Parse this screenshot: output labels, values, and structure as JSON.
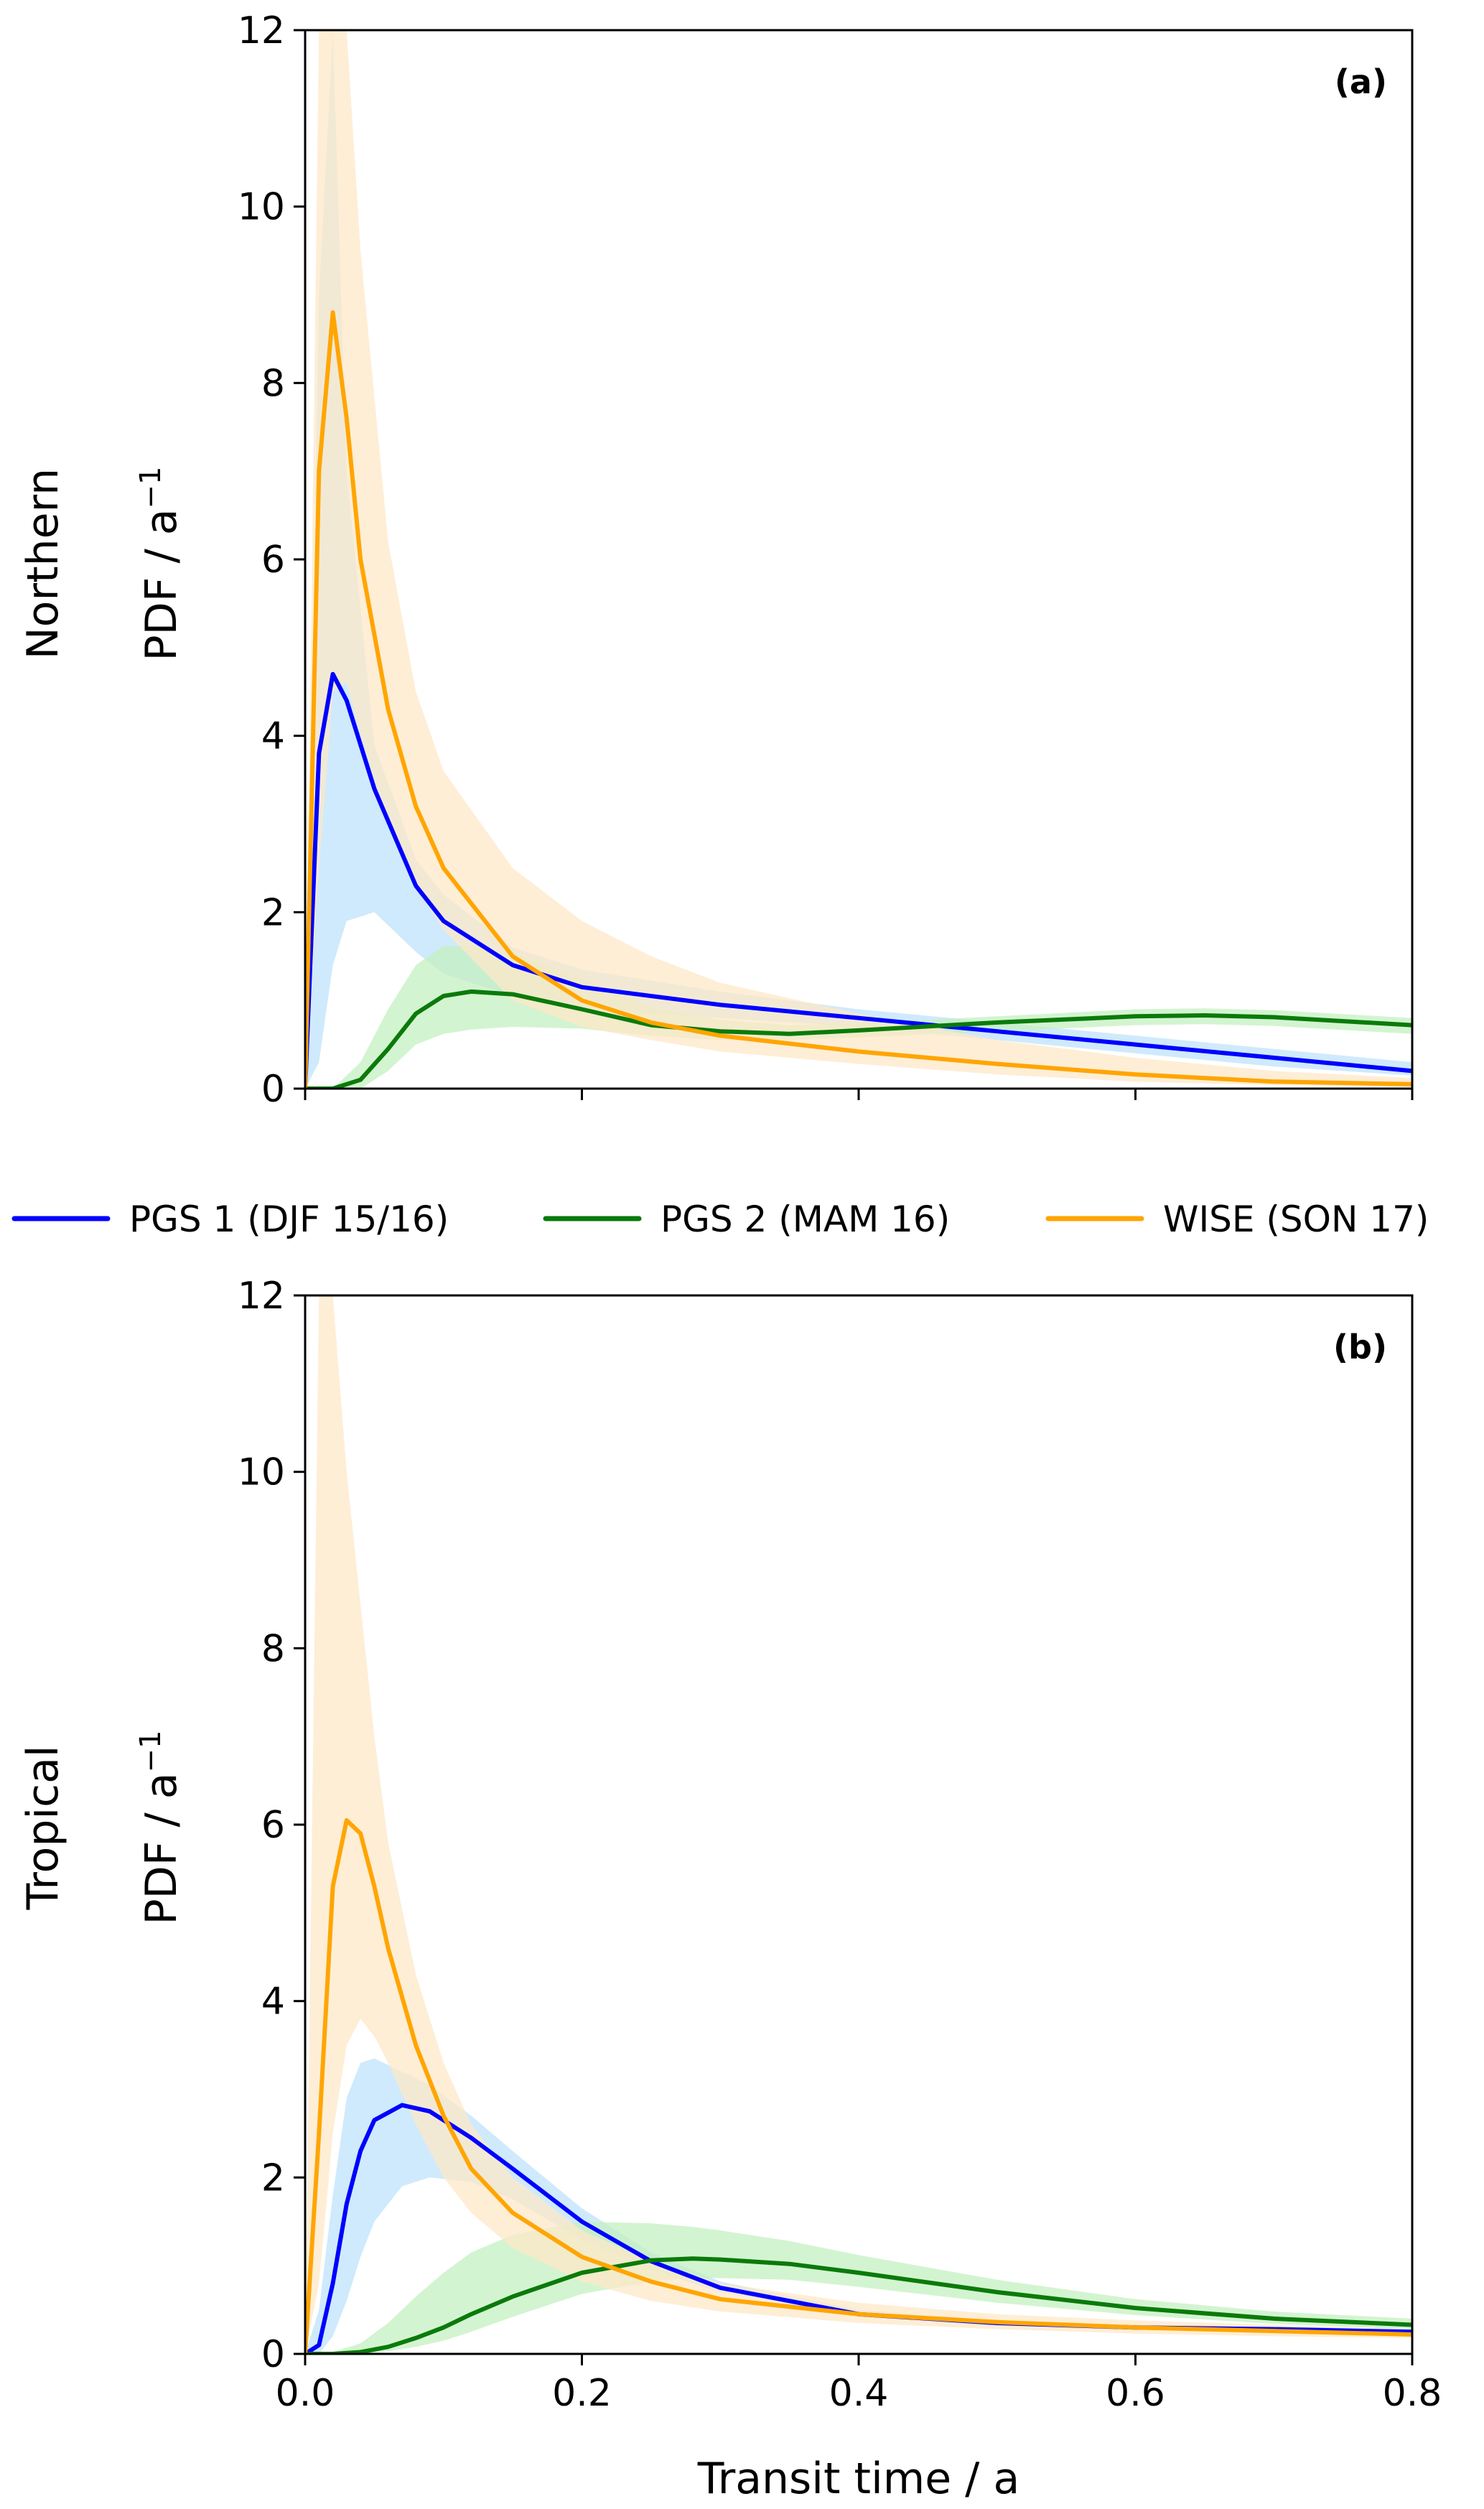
{
  "chart_data": [
    {
      "type": "line",
      "panel_label": "(a)",
      "row_label": "Northern",
      "ylabel": "PDF / a",
      "ylabel_exponent": "−1",
      "xlabel": "",
      "xlim": [
        0,
        0.8
      ],
      "ylim": [
        0,
        12
      ],
      "yticks": [
        "0",
        "2",
        "4",
        "6",
        "8",
        "10",
        "12"
      ],
      "xticks": [
        "",
        "",
        "",
        "",
        ""
      ],
      "series": [
        {
          "name": "PGS 1 (DJF 15/16)",
          "color": "#0000ff",
          "band_color": "#bfe3fb",
          "x": [
            0,
            0.01,
            0.02,
            0.03,
            0.05,
            0.08,
            0.1,
            0.15,
            0.2,
            0.3,
            0.4,
            0.5,
            0.6,
            0.7,
            0.8
          ],
          "y": [
            0,
            3.8,
            4.7,
            4.4,
            3.4,
            2.3,
            1.9,
            1.4,
            1.15,
            0.95,
            0.8,
            0.65,
            0.5,
            0.35,
            0.2
          ],
          "band_lower": [
            0,
            0.3,
            1.4,
            1.9,
            2.0,
            1.55,
            1.3,
            1.05,
            0.9,
            0.8,
            0.7,
            0.55,
            0.4,
            0.25,
            0.15
          ],
          "band_upper": [
            0,
            9,
            12,
            7,
            3.9,
            2.6,
            2.2,
            1.6,
            1.35,
            1.1,
            0.9,
            0.75,
            0.6,
            0.45,
            0.3
          ]
        },
        {
          "name": "PGS 2 (MAM 16)",
          "color": "#0a7a0a",
          "band_color": "#c4f0c0",
          "x": [
            0,
            0.02,
            0.04,
            0.06,
            0.08,
            0.1,
            0.12,
            0.15,
            0.2,
            0.25,
            0.3,
            0.35,
            0.4,
            0.5,
            0.6,
            0.65,
            0.7,
            0.8
          ],
          "y": [
            0,
            0,
            0.1,
            0.45,
            0.85,
            1.05,
            1.1,
            1.07,
            0.9,
            0.72,
            0.65,
            0.62,
            0.66,
            0.75,
            0.82,
            0.83,
            0.81,
            0.72
          ],
          "band_lower": [
            0,
            0,
            0,
            0.2,
            0.5,
            0.62,
            0.67,
            0.7,
            0.68,
            0.6,
            0.55,
            0.55,
            0.58,
            0.65,
            0.72,
            0.73,
            0.71,
            0.62
          ],
          "band_upper": [
            0,
            0,
            0.3,
            0.9,
            1.4,
            1.62,
            1.62,
            1.55,
            1.25,
            0.92,
            0.78,
            0.72,
            0.74,
            0.82,
            0.9,
            0.91,
            0.89,
            0.8
          ]
        },
        {
          "name": "WISE (SON 17)",
          "color": "#ffa500",
          "band_color": "#fde8c8",
          "x": [
            0,
            0.01,
            0.02,
            0.03,
            0.04,
            0.06,
            0.08,
            0.1,
            0.15,
            0.2,
            0.25,
            0.3,
            0.4,
            0.5,
            0.6,
            0.7,
            0.8
          ],
          "y": [
            0,
            7.0,
            8.8,
            7.6,
            6.0,
            4.3,
            3.2,
            2.5,
            1.5,
            1.0,
            0.75,
            0.6,
            0.42,
            0.28,
            0.16,
            0.08,
            0.05
          ],
          "band_lower": [
            0,
            2.5,
            4.5,
            4.6,
            4.0,
            3.0,
            2.3,
            1.8,
            1.0,
            0.7,
            0.55,
            0.42,
            0.28,
            0.16,
            0.08,
            0.04,
            0.02
          ],
          "band_upper": [
            0,
            12,
            12,
            12,
            9.5,
            6.2,
            4.5,
            3.6,
            2.5,
            1.9,
            1.5,
            1.2,
            0.85,
            0.55,
            0.35,
            0.2,
            0.12
          ]
        }
      ]
    },
    {
      "type": "line",
      "panel_label": "(b)",
      "row_label": "Tropical",
      "ylabel": "PDF / a",
      "ylabel_exponent": "−1",
      "xlabel": "Transit time / a",
      "xlim": [
        0,
        0.8
      ],
      "ylim": [
        0,
        12
      ],
      "yticks": [
        "0",
        "2",
        "4",
        "6",
        "8",
        "10",
        "12"
      ],
      "xticks": [
        "0.0",
        "0.2",
        "0.4",
        "0.6",
        "0.8"
      ],
      "series": [
        {
          "name": "PGS 1 (DJF 15/16)",
          "color": "#0000ff",
          "band_color": "#bfe3fb",
          "x": [
            0,
            0.01,
            0.02,
            0.03,
            0.04,
            0.05,
            0.07,
            0.09,
            0.12,
            0.15,
            0.2,
            0.25,
            0.3,
            0.4,
            0.5,
            0.6,
            0.7,
            0.8
          ],
          "y": [
            0,
            0.1,
            0.8,
            1.7,
            2.3,
            2.65,
            2.82,
            2.75,
            2.45,
            2.1,
            1.5,
            1.05,
            0.75,
            0.45,
            0.35,
            0.3,
            0.28,
            0.25
          ],
          "band_lower": [
            0,
            0,
            0.2,
            0.6,
            1.1,
            1.5,
            1.9,
            2.0,
            1.95,
            1.75,
            1.3,
            0.95,
            0.7,
            0.42,
            0.32,
            0.27,
            0.25,
            0.22
          ],
          "band_upper": [
            0,
            0.5,
            1.8,
            2.9,
            3.3,
            3.35,
            3.2,
            3.05,
            2.7,
            2.3,
            1.65,
            1.15,
            0.82,
            0.5,
            0.38,
            0.33,
            0.31,
            0.28
          ]
        },
        {
          "name": "PGS 2 (MAM 16)",
          "color": "#0a7a0a",
          "band_color": "#c4f0c0",
          "x": [
            0,
            0.02,
            0.04,
            0.06,
            0.08,
            0.1,
            0.12,
            0.15,
            0.2,
            0.25,
            0.28,
            0.3,
            0.35,
            0.4,
            0.5,
            0.6,
            0.7,
            0.8
          ],
          "y": [
            0,
            0,
            0.02,
            0.08,
            0.18,
            0.3,
            0.45,
            0.65,
            0.92,
            1.06,
            1.08,
            1.07,
            1.02,
            0.92,
            0.7,
            0.52,
            0.4,
            0.33
          ],
          "band_lower": [
            0,
            0,
            0,
            0.03,
            0.08,
            0.15,
            0.25,
            0.42,
            0.68,
            0.82,
            0.86,
            0.86,
            0.84,
            0.76,
            0.58,
            0.44,
            0.34,
            0.28
          ],
          "band_upper": [
            0,
            0.02,
            0.12,
            0.35,
            0.65,
            0.92,
            1.15,
            1.35,
            1.5,
            1.48,
            1.44,
            1.4,
            1.28,
            1.12,
            0.84,
            0.62,
            0.48,
            0.4
          ]
        },
        {
          "name": "WISE (SON 17)",
          "color": "#ffa500",
          "band_color": "#fde8c8",
          "x": [
            0,
            0.01,
            0.02,
            0.03,
            0.04,
            0.05,
            0.06,
            0.08,
            0.1,
            0.12,
            0.15,
            0.2,
            0.25,
            0.3,
            0.4,
            0.5,
            0.6,
            0.7,
            0.8
          ],
          "y": [
            0,
            2.5,
            5.3,
            6.05,
            5.9,
            5.3,
            4.6,
            3.5,
            2.7,
            2.1,
            1.6,
            1.1,
            0.82,
            0.62,
            0.45,
            0.36,
            0.3,
            0.26,
            0.22
          ],
          "band_lower": [
            0,
            0.8,
            2.5,
            3.5,
            3.8,
            3.6,
            3.3,
            2.6,
            2.0,
            1.6,
            1.2,
            0.82,
            0.6,
            0.48,
            0.35,
            0.28,
            0.23,
            0.2,
            0.18
          ],
          "band_upper": [
            0,
            12,
            12,
            10,
            8.5,
            7.0,
            5.8,
            4.3,
            3.3,
            2.6,
            2.0,
            1.4,
            1.05,
            0.8,
            0.58,
            0.45,
            0.38,
            0.33,
            0.28
          ]
        }
      ]
    }
  ],
  "legend": {
    "placement": "between-panels",
    "items": [
      {
        "label": "PGS 1 (DJF 15/16)",
        "color": "#0000ff"
      },
      {
        "label": "PGS 2 (MAM 16)",
        "color": "#0a7a0a"
      },
      {
        "label": "WISE (SON 17)",
        "color": "#ffa500"
      }
    ]
  }
}
